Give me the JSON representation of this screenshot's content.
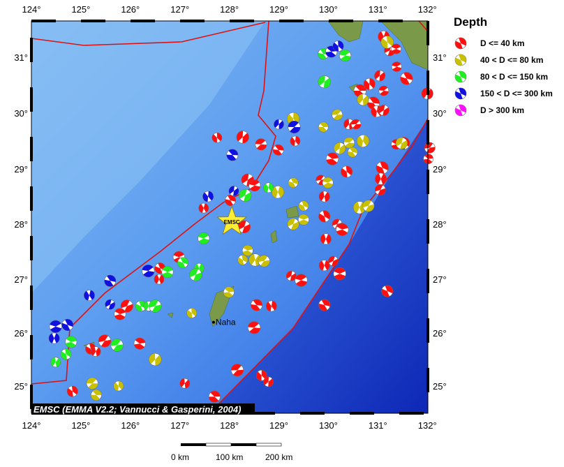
{
  "legend": {
    "title": "Depth",
    "items": [
      {
        "label": "D <= 40 km",
        "color": "#ff1010"
      },
      {
        "label": "40 < D <= 80 km",
        "color": "#c8c000"
      },
      {
        "label": "80 < D <= 150 km",
        "color": "#20ee20"
      },
      {
        "label": "150 < D <= 300 km",
        "color": "#1010e0"
      },
      {
        "label": "D > 300 km",
        "color": "#ff10ff"
      }
    ]
  },
  "axes": {
    "lon_ticks": [
      "124°",
      "125°",
      "126°",
      "127°",
      "128°",
      "129°",
      "130°",
      "131°",
      "132°"
    ],
    "lat_ticks": [
      "25°",
      "26°",
      "27°",
      "28°",
      "29°",
      "30°",
      "31°"
    ],
    "lon_range": [
      124,
      132
    ],
    "lat_range": [
      24.5,
      31.65
    ]
  },
  "credit": "EMSC (EMMA V2.2; Vannucci & Gasperini, 2004)",
  "epicenter": {
    "label": "EMSC",
    "lon": 128.05,
    "lat": 28.04
  },
  "city": {
    "label": "Naha",
    "lon": 127.68,
    "lat": 26.2
  },
  "scale_bar": {
    "labels": [
      "0 km",
      "100 km",
      "200 km"
    ]
  },
  "events": [
    [
      127.75,
      29.56,
      0
    ],
    [
      128.27,
      29.57,
      0
    ],
    [
      128.64,
      29.44,
      0
    ],
    [
      128.99,
      29.34,
      0
    ],
    [
      129.33,
      29.5,
      0
    ],
    [
      128.37,
      28.8,
      0
    ],
    [
      128.51,
      28.7,
      0
    ],
    [
      128.02,
      28.43,
      0
    ],
    [
      127.48,
      28.29,
      0
    ],
    [
      128.3,
      27.95,
      0
    ],
    [
      126.98,
      27.4,
      0
    ],
    [
      126.6,
      27.2,
      0
    ],
    [
      126.58,
      27.0,
      0
    ],
    [
      125.93,
      26.5,
      0
    ],
    [
      125.79,
      26.35,
      0
    ],
    [
      125.2,
      25.7,
      0
    ],
    [
      125.3,
      25.65,
      0
    ],
    [
      125.48,
      25.85,
      0
    ],
    [
      126.19,
      25.8,
      0
    ],
    [
      124.83,
      24.9,
      0
    ],
    [
      127.1,
      25.05,
      0
    ],
    [
      128.16,
      25.3,
      0
    ],
    [
      127.7,
      24.8,
      0
    ],
    [
      128.65,
      25.2,
      0
    ],
    [
      128.79,
      25.08,
      0
    ],
    [
      128.5,
      26.1,
      0
    ],
    [
      128.55,
      26.52,
      0
    ],
    [
      128.85,
      26.5,
      0
    ],
    [
      129.25,
      27.06,
      0
    ],
    [
      129.45,
      26.98,
      0
    ],
    [
      129.92,
      26.52,
      0
    ],
    [
      129.92,
      27.25,
      0
    ],
    [
      130.1,
      27.33,
      0
    ],
    [
      130.23,
      27.1,
      0
    ],
    [
      131.19,
      26.78,
      0
    ],
    [
      129.95,
      27.73,
      0
    ],
    [
      130.18,
      28.0,
      0
    ],
    [
      130.28,
      27.9,
      0
    ],
    [
      129.92,
      28.14,
      0
    ],
    [
      129.92,
      28.5,
      0
    ],
    [
      129.85,
      28.8,
      0
    ],
    [
      130.08,
      29.18,
      0
    ],
    [
      130.37,
      28.95,
      0
    ],
    [
      130.42,
      29.8,
      0
    ],
    [
      130.56,
      29.8,
      0
    ],
    [
      130.64,
      30.4,
      0
    ],
    [
      130.83,
      30.52,
      0
    ],
    [
      131.04,
      30.67,
      0
    ],
    [
      131.12,
      30.4,
      0
    ],
    [
      130.91,
      30.18,
      0
    ],
    [
      130.98,
      30.03,
      0
    ],
    [
      131.12,
      30.05,
      0
    ],
    [
      131.38,
      30.83,
      0
    ],
    [
      131.58,
      30.62,
      0
    ],
    [
      131.12,
      31.37,
      0
    ],
    [
      131.24,
      31.12,
      0
    ],
    [
      131.37,
      31.15,
      0
    ],
    [
      131.09,
      29.02,
      0
    ],
    [
      131.06,
      28.82,
      0
    ],
    [
      131.05,
      28.62,
      0
    ],
    [
      131.37,
      29.44,
      0
    ],
    [
      131.52,
      29.46,
      0
    ],
    [
      132.0,
      30.35,
      0
    ],
    [
      132.05,
      29.38,
      0
    ],
    [
      132.02,
      29.18,
      0
    ],
    [
      131.19,
      31.27,
      1
    ],
    [
      130.7,
      30.24,
      1
    ],
    [
      130.18,
      29.97,
      1
    ],
    [
      129.9,
      29.75,
      1
    ],
    [
      129.29,
      29.9,
      1
    ],
    [
      130.23,
      29.37,
      1
    ],
    [
      130.42,
      29.47,
      1
    ],
    [
      130.49,
      29.3,
      1
    ],
    [
      130.7,
      29.5,
      1
    ],
    [
      131.48,
      29.46,
      1
    ],
    [
      129.99,
      28.75,
      1
    ],
    [
      129.29,
      28.75,
      1
    ],
    [
      128.98,
      28.58,
      1
    ],
    [
      129.29,
      28.0,
      1
    ],
    [
      129.5,
      28.08,
      1
    ],
    [
      129.5,
      28.33,
      1
    ],
    [
      130.63,
      28.3,
      1
    ],
    [
      130.81,
      28.33,
      1
    ],
    [
      128.37,
      27.52,
      1
    ],
    [
      128.27,
      27.35,
      1
    ],
    [
      128.52,
      27.35,
      1
    ],
    [
      128.7,
      27.33,
      1
    ],
    [
      127.99,
      26.76,
      1
    ],
    [
      127.24,
      26.37,
      1
    ],
    [
      126.5,
      25.5,
      1
    ],
    [
      125.23,
      25.05,
      1
    ],
    [
      125.31,
      24.83,
      1
    ],
    [
      125.76,
      25.0,
      1
    ],
    [
      129.92,
      30.56,
      2
    ],
    [
      130.34,
      31.03,
      2
    ],
    [
      129.9,
      31.06,
      2
    ],
    [
      128.79,
      28.66,
      2
    ],
    [
      128.32,
      28.52,
      2
    ],
    [
      127.48,
      27.74,
      2
    ],
    [
      127.06,
      27.3,
      2
    ],
    [
      127.39,
      27.2,
      2
    ],
    [
      127.32,
      27.08,
      2
    ],
    [
      126.75,
      27.13,
      2
    ],
    [
      126.21,
      26.5,
      2
    ],
    [
      126.37,
      26.5,
      2
    ],
    [
      126.5,
      26.5,
      2
    ],
    [
      124.8,
      25.83,
      2
    ],
    [
      124.7,
      25.6,
      2
    ],
    [
      124.49,
      25.45,
      2
    ],
    [
      125.73,
      25.77,
      2
    ],
    [
      130.06,
      31.1,
      3
    ],
    [
      130.2,
      31.2,
      3
    ],
    [
      129.0,
      29.8,
      3
    ],
    [
      129.31,
      29.75,
      3
    ],
    [
      128.06,
      29.25,
      3
    ],
    [
      127.57,
      28.5,
      3
    ],
    [
      128.09,
      28.6,
      3
    ],
    [
      126.36,
      27.15,
      3
    ],
    [
      125.59,
      26.97,
      3
    ],
    [
      125.17,
      26.7,
      3
    ],
    [
      125.59,
      26.53,
      3
    ],
    [
      124.49,
      26.12,
      3
    ],
    [
      124.73,
      26.15,
      3
    ],
    [
      124.46,
      25.9,
      3
    ]
  ]
}
